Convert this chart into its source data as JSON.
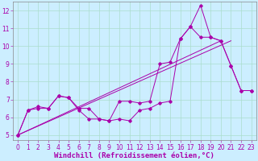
{
  "background_color": "#cceeff",
  "grid_color": "#aaddcc",
  "line_color": "#aa00aa",
  "x": [
    0,
    1,
    2,
    3,
    4,
    5,
    6,
    7,
    8,
    9,
    10,
    11,
    12,
    13,
    14,
    15,
    16,
    17,
    18,
    19,
    20,
    21,
    22,
    23
  ],
  "line1": [
    5.0,
    6.4,
    6.6,
    6.5,
    7.2,
    7.1,
    6.5,
    6.5,
    5.9,
    5.8,
    5.9,
    5.8,
    6.4,
    6.5,
    6.8,
    6.9,
    10.4,
    11.1,
    12.3,
    10.5,
    10.3,
    8.9,
    7.5,
    7.5
  ],
  "line2": [
    5.0,
    6.4,
    6.5,
    6.5,
    7.2,
    7.1,
    6.4,
    5.9,
    5.9,
    5.8,
    6.9,
    6.9,
    6.8,
    6.9,
    9.0,
    9.1,
    10.4,
    11.1,
    10.5,
    10.5,
    10.3,
    8.9,
    7.5,
    7.5
  ],
  "ylim": [
    4.7,
    12.5
  ],
  "xlim": [
    -0.5,
    23.5
  ],
  "yticks": [
    5,
    6,
    7,
    8,
    9,
    10,
    11,
    12
  ],
  "xticks": [
    0,
    1,
    2,
    3,
    4,
    5,
    6,
    7,
    8,
    9,
    10,
    11,
    12,
    13,
    14,
    15,
    16,
    17,
    18,
    19,
    20,
    21,
    22,
    23
  ],
  "xlabel": "Windchill (Refroidissement éolien,°C)",
  "tick_label_color": "#aa00aa",
  "xlabel_fontsize": 6.5,
  "tick_fontsize": 5.5
}
